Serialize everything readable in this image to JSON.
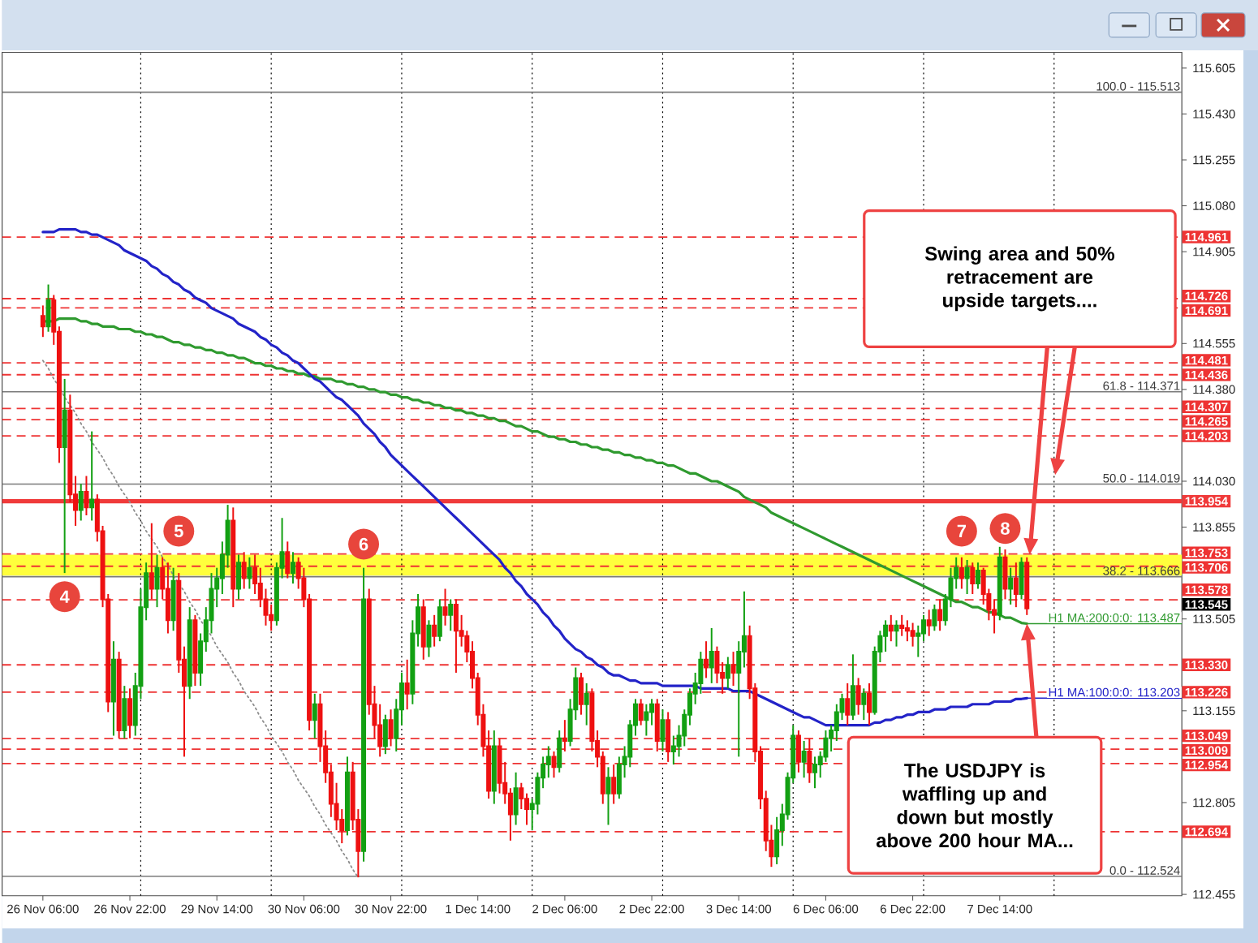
{
  "chart_data": {
    "type": "candlestick",
    "categories": [
      "26 Nov 06:00",
      null,
      null,
      null,
      null,
      null,
      null,
      null,
      null,
      null,
      null,
      null,
      null,
      null,
      null,
      null,
      "26 Nov 22:00",
      null,
      null,
      null,
      null,
      null,
      null,
      null,
      null,
      null,
      null,
      null,
      null,
      null,
      null,
      null,
      "29 Nov 14:00",
      null,
      null,
      null,
      null,
      null,
      null,
      null,
      null,
      null,
      null,
      null,
      null,
      null,
      null,
      null,
      "30 Nov 06:00",
      null,
      null,
      null,
      null,
      null,
      null,
      null,
      null,
      null,
      null,
      null,
      null,
      null,
      null,
      null,
      "30 Nov 22:00",
      null,
      null,
      null,
      null,
      null,
      null,
      null,
      null,
      null,
      null,
      null,
      null,
      null,
      null,
      null,
      "1 Dec 14:00",
      null,
      null,
      null,
      null,
      null,
      null,
      null,
      null,
      null,
      null,
      null,
      null,
      null,
      null,
      null,
      "2 Dec 06:00",
      null,
      null,
      null,
      null,
      null,
      null,
      null,
      null,
      null,
      null,
      null,
      null,
      null,
      null,
      null,
      "2 Dec 22:00",
      null,
      null,
      null,
      null,
      null,
      null,
      null,
      null,
      null,
      null,
      null,
      null,
      null,
      null,
      null,
      "3 Dec 14:00",
      null,
      null,
      null,
      null,
      null,
      null,
      null,
      null,
      null,
      null,
      null,
      null,
      null,
      null,
      null,
      "6 Dec 06:00",
      null,
      null,
      null,
      null,
      null,
      null,
      null,
      null,
      null,
      null,
      null,
      null,
      null,
      null,
      null,
      "6 Dec 22:00",
      null,
      null,
      null,
      null,
      null,
      null,
      null,
      null,
      null,
      null,
      null,
      null,
      null,
      null,
      null,
      "7 Dec 14:00",
      null,
      null,
      null,
      null,
      null
    ],
    "ohlc": [
      [
        114.66,
        114.7,
        114.58,
        114.62
      ],
      [
        114.62,
        114.78,
        114.6,
        114.72
      ],
      [
        114.72,
        114.74,
        114.55,
        114.6
      ],
      [
        114.6,
        114.62,
        114.1,
        114.16
      ],
      [
        114.16,
        114.42,
        113.68,
        114.3
      ],
      [
        114.3,
        114.36,
        113.95,
        113.98
      ],
      [
        113.98,
        114.05,
        113.86,
        113.92
      ],
      [
        113.92,
        114.02,
        113.88,
        113.99
      ],
      [
        113.99,
        114.05,
        113.9,
        113.93
      ],
      [
        113.93,
        114.22,
        113.88,
        113.96
      ],
      [
        113.96,
        113.98,
        113.8,
        113.84
      ],
      [
        113.84,
        113.86,
        113.55,
        113.58
      ],
      [
        113.58,
        113.6,
        113.15,
        113.19
      ],
      [
        113.19,
        113.42,
        113.06,
        113.35
      ],
      [
        113.35,
        113.38,
        113.05,
        113.08
      ],
      [
        113.08,
        113.25,
        113.05,
        113.2
      ],
      [
        113.2,
        113.24,
        113.05,
        113.1
      ],
      [
        113.1,
        113.3,
        113.06,
        113.25
      ],
      [
        113.25,
        113.62,
        113.2,
        113.55
      ],
      [
        113.55,
        113.72,
        113.5,
        113.68
      ],
      [
        113.68,
        113.87,
        113.58,
        113.62
      ],
      [
        113.62,
        113.75,
        113.55,
        113.7
      ],
      [
        113.7,
        113.74,
        113.58,
        113.62
      ],
      [
        113.62,
        113.72,
        113.45,
        113.5
      ],
      [
        113.5,
        113.7,
        113.46,
        113.65
      ],
      [
        113.65,
        113.68,
        113.3,
        113.35
      ],
      [
        113.35,
        113.4,
        112.98,
        113.25
      ],
      [
        113.25,
        113.55,
        113.2,
        113.5
      ],
      [
        113.5,
        113.52,
        113.25,
        113.3
      ],
      [
        113.3,
        113.45,
        113.25,
        113.42
      ],
      [
        113.42,
        113.55,
        113.38,
        113.5
      ],
      [
        113.5,
        113.68,
        113.45,
        113.62
      ],
      [
        113.62,
        113.7,
        113.55,
        113.66
      ],
      [
        113.66,
        113.8,
        113.6,
        113.75
      ],
      [
        113.75,
        113.94,
        113.7,
        113.88
      ],
      [
        113.88,
        113.93,
        113.55,
        113.62
      ],
      [
        113.62,
        113.75,
        113.58,
        113.72
      ],
      [
        113.72,
        113.76,
        113.62,
        113.66
      ],
      [
        113.66,
        113.74,
        113.62,
        113.7
      ],
      [
        113.7,
        113.75,
        113.6,
        113.64
      ],
      [
        113.64,
        113.7,
        113.55,
        113.58
      ],
      [
        113.58,
        113.62,
        113.48,
        113.52
      ],
      [
        113.52,
        113.56,
        113.46,
        113.5
      ],
      [
        113.5,
        113.72,
        113.48,
        113.7
      ],
      [
        113.7,
        113.89,
        113.66,
        113.76
      ],
      [
        113.76,
        113.8,
        113.66,
        113.68
      ],
      [
        113.68,
        113.76,
        113.64,
        113.72
      ],
      [
        113.72,
        113.74,
        113.62,
        113.66
      ],
      [
        113.66,
        113.7,
        113.55,
        113.58
      ],
      [
        113.58,
        113.6,
        113.08,
        113.12
      ],
      [
        113.12,
        113.22,
        113.05,
        113.18
      ],
      [
        113.18,
        113.22,
        112.96,
        113.02
      ],
      [
        113.02,
        113.08,
        112.88,
        112.92
      ],
      [
        112.92,
        112.95,
        112.75,
        112.8
      ],
      [
        112.8,
        112.88,
        112.7,
        112.74
      ],
      [
        112.74,
        112.78,
        112.65,
        112.7
      ],
      [
        112.7,
        112.98,
        112.68,
        112.92
      ],
      [
        112.92,
        112.96,
        112.7,
        112.74
      ],
      [
        112.74,
        112.78,
        112.52,
        112.62
      ],
      [
        112.62,
        113.7,
        112.58,
        113.58
      ],
      [
        113.58,
        113.62,
        113.14,
        113.18
      ],
      [
        113.18,
        113.25,
        113.05,
        113.1
      ],
      [
        113.1,
        113.18,
        112.98,
        113.02
      ],
      [
        113.02,
        113.14,
        112.99,
        113.12
      ],
      [
        113.12,
        113.16,
        113.02,
        113.05
      ],
      [
        113.05,
        113.2,
        113.0,
        113.16
      ],
      [
        113.16,
        113.3,
        113.1,
        113.26
      ],
      [
        113.26,
        113.35,
        113.16,
        113.22
      ],
      [
        113.22,
        113.5,
        113.18,
        113.45
      ],
      [
        113.45,
        113.6,
        113.4,
        113.55
      ],
      [
        113.55,
        113.58,
        113.35,
        113.4
      ],
      [
        113.4,
        113.5,
        113.36,
        113.48
      ],
      [
        113.48,
        113.52,
        113.4,
        113.44
      ],
      [
        113.44,
        113.58,
        113.42,
        113.55
      ],
      [
        113.55,
        113.62,
        113.48,
        113.52
      ],
      [
        113.52,
        113.58,
        113.46,
        113.56
      ],
      [
        113.56,
        113.58,
        113.3,
        113.46
      ],
      [
        113.46,
        113.52,
        113.4,
        113.44
      ],
      [
        113.44,
        113.46,
        113.34,
        113.38
      ],
      [
        113.38,
        113.42,
        113.24,
        113.28
      ],
      [
        113.28,
        113.3,
        113.1,
        113.14
      ],
      [
        113.14,
        113.18,
        112.98,
        113.02
      ],
      [
        113.02,
        113.08,
        112.82,
        112.85
      ],
      [
        112.85,
        113.08,
        112.8,
        113.02
      ],
      [
        113.02,
        113.05,
        112.84,
        112.88
      ],
      [
        112.88,
        112.96,
        112.8,
        112.84
      ],
      [
        112.84,
        112.86,
        112.66,
        112.76
      ],
      [
        112.76,
        112.92,
        112.72,
        112.86
      ],
      [
        112.86,
        112.88,
        112.78,
        112.82
      ],
      [
        112.82,
        112.84,
        112.72,
        112.78
      ],
      [
        112.78,
        112.82,
        112.7,
        112.8
      ],
      [
        112.8,
        112.92,
        112.76,
        112.9
      ],
      [
        112.9,
        112.98,
        112.86,
        112.95
      ],
      [
        112.95,
        113.02,
        112.9,
        112.98
      ],
      [
        112.98,
        113.0,
        112.9,
        112.94
      ],
      [
        112.94,
        113.08,
        112.92,
        113.05
      ],
      [
        113.05,
        113.12,
        113.0,
        113.04
      ],
      [
        113.04,
        113.2,
        113.02,
        113.16
      ],
      [
        113.16,
        113.32,
        113.12,
        113.28
      ],
      [
        113.28,
        113.3,
        113.14,
        113.18
      ],
      [
        113.18,
        113.26,
        113.1,
        113.22
      ],
      [
        113.22,
        113.24,
        113.0,
        113.04
      ],
      [
        113.04,
        113.08,
        112.94,
        112.98
      ],
      [
        112.98,
        113.0,
        112.8,
        112.84
      ],
      [
        112.84,
        112.94,
        112.72,
        112.9
      ],
      [
        112.9,
        112.95,
        112.8,
        112.84
      ],
      [
        112.84,
        112.98,
        112.82,
        112.95
      ],
      [
        112.95,
        113.02,
        112.9,
        112.98
      ],
      [
        112.98,
        113.12,
        112.94,
        113.1
      ],
      [
        113.1,
        113.2,
        113.06,
        113.18
      ],
      [
        113.18,
        113.2,
        113.1,
        113.12
      ],
      [
        113.12,
        113.18,
        113.06,
        113.15
      ],
      [
        113.15,
        113.2,
        113.1,
        113.18
      ],
      [
        113.18,
        113.2,
        113.0,
        113.04
      ],
      [
        113.04,
        113.16,
        113.0,
        113.12
      ],
      [
        113.12,
        113.15,
        112.96,
        113.0
      ],
      [
        113.0,
        113.06,
        112.95,
        113.02
      ],
      [
        113.02,
        113.1,
        112.98,
        113.06
      ],
      [
        113.06,
        113.16,
        113.02,
        113.14
      ],
      [
        113.14,
        113.24,
        113.1,
        113.22
      ],
      [
        113.22,
        113.3,
        113.18,
        113.26
      ],
      [
        113.26,
        113.38,
        113.22,
        113.35
      ],
      [
        113.35,
        113.42,
        113.28,
        113.32
      ],
      [
        113.32,
        113.47,
        113.26,
        113.38
      ],
      [
        113.38,
        113.4,
        113.26,
        113.3
      ],
      [
        113.3,
        113.34,
        113.22,
        113.28
      ],
      [
        113.28,
        113.36,
        113.24,
        113.33
      ],
      [
        113.33,
        113.38,
        113.25,
        113.3
      ],
      [
        113.3,
        113.42,
        112.98,
        113.38
      ],
      [
        113.38,
        113.61,
        113.32,
        113.44
      ],
      [
        113.44,
        113.48,
        113.2,
        113.24
      ],
      [
        113.24,
        113.26,
        112.96,
        113.0
      ],
      [
        113.0,
        113.02,
        112.78,
        112.82
      ],
      [
        112.82,
        112.85,
        112.62,
        112.66
      ],
      [
        112.66,
        112.72,
        112.56,
        112.6
      ],
      [
        112.6,
        112.75,
        112.57,
        112.7
      ],
      [
        112.7,
        112.8,
        112.64,
        112.76
      ],
      [
        112.76,
        112.92,
        112.74,
        112.9
      ],
      [
        112.9,
        113.1,
        112.88,
        113.06
      ],
      [
        113.06,
        113.08,
        112.92,
        112.96
      ],
      [
        112.96,
        113.04,
        112.9,
        113.0
      ],
      [
        113.0,
        113.05,
        112.88,
        112.92
      ],
      [
        112.92,
        112.98,
        112.86,
        112.95
      ],
      [
        112.95,
        113.0,
        112.9,
        112.98
      ],
      [
        112.98,
        113.08,
        112.96,
        113.05
      ],
      [
        113.05,
        113.1,
        113.0,
        113.08
      ],
      [
        113.08,
        113.18,
        113.04,
        113.15
      ],
      [
        113.15,
        113.22,
        113.12,
        113.2
      ],
      [
        113.2,
        113.26,
        113.1,
        113.14
      ],
      [
        113.14,
        113.37,
        113.12,
        113.25
      ],
      [
        113.25,
        113.28,
        113.14,
        113.18
      ],
      [
        113.18,
        113.24,
        113.12,
        113.22
      ],
      [
        113.22,
        113.26,
        113.1,
        113.15
      ],
      [
        113.15,
        113.4,
        113.14,
        113.38
      ],
      [
        113.38,
        113.46,
        113.34,
        113.44
      ],
      [
        113.44,
        113.5,
        113.38,
        113.48
      ],
      [
        113.48,
        113.52,
        113.42,
        113.46
      ],
      [
        113.46,
        113.5,
        113.4,
        113.48
      ],
      [
        113.48,
        113.52,
        113.44,
        113.47
      ],
      [
        113.47,
        113.5,
        113.42,
        113.46
      ],
      [
        113.46,
        113.49,
        113.4,
        113.44
      ],
      [
        113.44,
        113.48,
        113.36,
        113.45
      ],
      [
        113.45,
        113.52,
        113.42,
        113.5
      ],
      [
        113.5,
        113.54,
        113.44,
        113.48
      ],
      [
        113.48,
        113.56,
        113.46,
        113.54
      ],
      [
        113.54,
        113.58,
        113.46,
        113.5
      ],
      [
        113.5,
        113.6,
        113.48,
        113.58
      ],
      [
        113.58,
        113.7,
        113.55,
        113.66
      ],
      [
        113.66,
        113.74,
        113.62,
        113.7
      ],
      [
        113.7,
        113.74,
        113.62,
        113.66
      ],
      [
        113.66,
        113.73,
        113.6,
        113.7
      ],
      [
        113.7,
        113.72,
        113.6,
        113.64
      ],
      [
        113.64,
        113.72,
        113.62,
        113.69
      ],
      [
        113.69,
        113.7,
        113.56,
        113.6
      ],
      [
        113.6,
        113.62,
        113.5,
        113.54
      ],
      [
        113.54,
        113.58,
        113.45,
        113.52
      ],
      [
        113.52,
        113.78,
        113.5,
        113.74
      ],
      [
        113.74,
        113.77,
        113.58,
        113.62
      ],
      [
        113.62,
        113.7,
        113.56,
        113.66
      ],
      [
        113.66,
        113.72,
        113.55,
        113.6
      ],
      [
        113.6,
        113.74,
        113.58,
        113.72
      ],
      [
        113.72,
        113.74,
        113.52,
        113.545
      ]
    ],
    "colors": [
      "#ee1111",
      "#13a013",
      "#ee1111",
      "#ee1111",
      "#13a013",
      "#ee1111",
      "#ee1111",
      "#13a013",
      "#ee1111",
      "#13a013",
      "#ee1111",
      "#ee1111",
      "#ee1111",
      "#13a013",
      "#ee1111",
      "#13a013",
      "#ee1111",
      "#13a013",
      "#13a013",
      "#13a013",
      "#ee1111",
      "#13a013",
      "#ee1111",
      "#ee1111",
      "#13a013",
      "#ee1111",
      "#ee1111",
      "#13a013",
      "#ee1111",
      "#13a013",
      "#13a013",
      "#13a013",
      "#13a013",
      "#13a013",
      "#13a013",
      "#ee1111",
      "#13a013",
      "#ee1111",
      "#13a013",
      "#ee1111",
      "#ee1111",
      "#ee1111",
      "#ee1111",
      "#13a013",
      "#13a013",
      "#ee1111",
      "#13a013",
      "#ee1111",
      "#ee1111",
      "#ee1111",
      "#13a013",
      "#ee1111",
      "#ee1111",
      "#ee1111",
      "#ee1111",
      "#ee1111",
      "#13a013",
      "#ee1111",
      "#ee1111",
      "#13a013",
      "#ee1111",
      "#ee1111",
      "#ee1111",
      "#13a013",
      "#ee1111",
      "#13a013",
      "#13a013",
      "#ee1111",
      "#13a013",
      "#13a013",
      "#ee1111",
      "#13a013",
      "#ee1111",
      "#13a013",
      "#ee1111",
      "#13a013",
      "#ee1111",
      "#ee1111",
      "#ee1111",
      "#ee1111",
      "#ee1111",
      "#ee1111",
      "#ee1111",
      "#13a013",
      "#ee1111",
      "#ee1111",
      "#ee1111",
      "#13a013",
      "#ee1111",
      "#ee1111",
      "#13a013",
      "#13a013",
      "#13a013",
      "#13a013",
      "#ee1111",
      "#13a013",
      "#ee1111",
      "#13a013",
      "#13a013",
      "#ee1111",
      "#13a013",
      "#ee1111",
      "#ee1111",
      "#ee1111",
      "#13a013",
      "#ee1111",
      "#13a013",
      "#13a013",
      "#13a013",
      "#13a013",
      "#ee1111",
      "#13a013",
      "#13a013",
      "#ee1111",
      "#13a013",
      "#ee1111",
      "#13a013",
      "#13a013",
      "#13a013",
      "#13a013",
      "#13a013",
      "#13a013",
      "#ee1111",
      "#13a013",
      "#ee1111",
      "#ee1111",
      "#13a013",
      "#ee1111",
      "#13a013",
      "#13a013",
      "#ee1111",
      "#ee1111",
      "#ee1111",
      "#ee1111",
      "#ee1111",
      "#13a013",
      "#13a013",
      "#13a013",
      "#13a013",
      "#ee1111",
      "#13a013",
      "#ee1111",
      "#13a013",
      "#13a013",
      "#13a013",
      "#13a013",
      "#13a013",
      "#13a013",
      "#ee1111",
      "#13a013",
      "#ee1111",
      "#13a013",
      "#ee1111",
      "#13a013",
      "#13a013",
      "#13a013",
      "#ee1111",
      "#13a013",
      "#ee1111",
      "#ee1111",
      "#ee1111",
      "#13a013",
      "#13a013",
      "#ee1111",
      "#13a013",
      "#ee1111",
      "#13a013",
      "#13a013",
      "#13a013",
      "#ee1111",
      "#13a013",
      "#ee1111",
      "#13a013",
      "#ee1111",
      "#ee1111",
      "#ee1111",
      "#13a013",
      "#ee1111",
      "#13a013",
      "#ee1111",
      "#13a013",
      "#ee1111"
    ],
    "series": [
      {
        "type": "line",
        "name": "H1 MA:200:0:0: 113.487",
        "color": "#2f9a2f",
        "values": [
          114.64,
          114.64,
          114.64,
          114.65,
          114.65,
          114.65,
          114.65,
          114.64,
          114.64,
          114.63,
          114.63,
          114.62,
          114.62,
          114.62,
          114.61,
          114.61,
          114.61,
          114.6,
          114.6,
          114.59,
          114.59,
          114.58,
          114.58,
          114.57,
          114.56,
          114.56,
          114.55,
          114.55,
          114.54,
          114.54,
          114.53,
          114.53,
          114.52,
          114.52,
          114.51,
          114.51,
          114.5,
          114.5,
          114.49,
          114.48,
          114.48,
          114.47,
          114.47,
          114.46,
          114.46,
          114.45,
          114.45,
          114.44,
          114.44,
          114.43,
          114.43,
          114.42,
          114.42,
          114.42,
          114.41,
          114.41,
          114.4,
          114.4,
          114.39,
          114.39,
          114.38,
          114.38,
          114.37,
          114.37,
          114.36,
          114.36,
          114.35,
          114.35,
          114.34,
          114.34,
          114.33,
          114.33,
          114.32,
          114.32,
          114.31,
          114.31,
          114.3,
          114.3,
          114.29,
          114.29,
          114.28,
          114.28,
          114.27,
          114.27,
          114.26,
          114.26,
          114.25,
          114.24,
          114.24,
          114.23,
          114.22,
          114.22,
          114.21,
          114.2,
          114.2,
          114.19,
          114.19,
          114.18,
          114.18,
          114.17,
          114.17,
          114.16,
          114.16,
          114.15,
          114.15,
          114.14,
          114.14,
          114.13,
          114.13,
          114.12,
          114.12,
          114.11,
          114.11,
          114.1,
          114.1,
          114.09,
          114.09,
          114.08,
          114.07,
          114.06,
          114.06,
          114.05,
          114.04,
          114.03,
          114.03,
          114.02,
          114.01,
          114.0,
          113.99,
          113.97,
          113.96,
          113.95,
          113.94,
          113.93,
          113.91,
          113.9,
          113.89,
          113.88,
          113.87,
          113.86,
          113.85,
          113.84,
          113.83,
          113.82,
          113.81,
          113.8,
          113.79,
          113.78,
          113.77,
          113.76,
          113.75,
          113.74,
          113.73,
          113.72,
          113.71,
          113.7,
          113.69,
          113.68,
          113.67,
          113.66,
          113.65,
          113.64,
          113.63,
          113.62,
          113.61,
          113.6,
          113.59,
          113.58,
          113.57,
          113.57,
          113.56,
          113.55,
          113.55,
          113.54,
          113.53,
          113.53,
          113.52,
          113.51,
          113.51,
          113.5,
          113.49,
          113.487
        ]
      },
      {
        "type": "line",
        "name": "H1 MA:100:0:0: 113.203",
        "color": "#2323c8",
        "values": [
          114.98,
          114.98,
          114.98,
          114.99,
          114.99,
          114.99,
          114.99,
          114.98,
          114.98,
          114.97,
          114.97,
          114.96,
          114.95,
          114.94,
          114.93,
          114.91,
          114.9,
          114.89,
          114.88,
          114.87,
          114.85,
          114.84,
          114.82,
          114.81,
          114.79,
          114.78,
          114.76,
          114.75,
          114.73,
          114.72,
          114.71,
          114.69,
          114.68,
          114.67,
          114.66,
          114.65,
          114.63,
          114.62,
          114.61,
          114.6,
          114.58,
          114.57,
          114.55,
          114.54,
          114.52,
          114.51,
          114.49,
          114.48,
          114.46,
          114.44,
          114.42,
          114.41,
          114.39,
          114.37,
          114.35,
          114.34,
          114.32,
          114.3,
          114.28,
          114.25,
          114.23,
          114.21,
          114.18,
          114.16,
          114.13,
          114.11,
          114.09,
          114.07,
          114.05,
          114.03,
          114.01,
          113.99,
          113.97,
          113.95,
          113.93,
          113.91,
          113.89,
          113.87,
          113.85,
          113.83,
          113.81,
          113.79,
          113.77,
          113.75,
          113.73,
          113.7,
          113.68,
          113.65,
          113.63,
          113.6,
          113.58,
          113.56,
          113.53,
          113.51,
          113.48,
          113.46,
          113.43,
          113.41,
          113.39,
          113.38,
          113.36,
          113.35,
          113.33,
          113.32,
          113.3,
          113.29,
          113.29,
          113.28,
          113.27,
          113.27,
          113.26,
          113.26,
          113.26,
          113.26,
          113.25,
          113.25,
          113.25,
          113.25,
          113.25,
          113.25,
          113.25,
          113.24,
          113.24,
          113.24,
          113.24,
          113.24,
          113.24,
          113.23,
          113.23,
          113.23,
          113.23,
          113.22,
          113.21,
          113.2,
          113.19,
          113.18,
          113.17,
          113.16,
          113.15,
          113.14,
          113.13,
          113.13,
          113.12,
          113.11,
          113.1,
          113.1,
          113.1,
          113.1,
          113.1,
          113.1,
          113.1,
          113.1,
          113.1,
          113.11,
          113.11,
          113.12,
          113.12,
          113.13,
          113.13,
          113.14,
          113.14,
          113.15,
          113.15,
          113.15,
          113.16,
          113.16,
          113.16,
          113.17,
          113.17,
          113.17,
          113.17,
          113.18,
          113.18,
          113.18,
          113.18,
          113.19,
          113.19,
          113.19,
          113.19,
          113.2,
          113.2,
          113.203
        ]
      },
      {
        "type": "line",
        "color": "#8c8c8c",
        "line_style": "dotted",
        "values": [
          114.49,
          114.46,
          114.42,
          114.39,
          114.35,
          114.32,
          114.29,
          114.25,
          114.22,
          114.18,
          114.15,
          114.12,
          114.08,
          114.05,
          114.01,
          113.98,
          113.95,
          113.91,
          113.88,
          113.84,
          113.81,
          113.78,
          113.74,
          113.71,
          113.67,
          113.64,
          113.61,
          113.57,
          113.54,
          113.5,
          113.47,
          113.44,
          113.4,
          113.37,
          113.34,
          113.3,
          113.27,
          113.23,
          113.2,
          113.17,
          113.13,
          113.1,
          113.06,
          113.03,
          113.0,
          112.96,
          112.93,
          112.89,
          112.86,
          112.83,
          112.79,
          112.76,
          112.72,
          112.69,
          112.66,
          112.62,
          112.59,
          112.55,
          112.52,
          null,
          null,
          null,
          null,
          null,
          null,
          null,
          null,
          null,
          null,
          null,
          null,
          null,
          null,
          null,
          null,
          null,
          null,
          null,
          null,
          null,
          null,
          null,
          null,
          null,
          null,
          null,
          null,
          null,
          null,
          null,
          null,
          null,
          null,
          null,
          null,
          null,
          null,
          null,
          null,
          null,
          null,
          null,
          null,
          null,
          null,
          null,
          null,
          null,
          null,
          null,
          null,
          null,
          null,
          null,
          null,
          null,
          null,
          null,
          null,
          null,
          null,
          null,
          null,
          null,
          null,
          null,
          null,
          null,
          null,
          null,
          null,
          null,
          null,
          null,
          null,
          null,
          null,
          null,
          null,
          null,
          null,
          null,
          null,
          null,
          null,
          null,
          null,
          null,
          null,
          null,
          null,
          null,
          null,
          null,
          null,
          null,
          null,
          null,
          null,
          null,
          null,
          null,
          null,
          null,
          null,
          null,
          null,
          null,
          null,
          null,
          null,
          null,
          null,
          null,
          null,
          null,
          null,
          null,
          null,
          null,
          null,
          null
        ]
      }
    ],
    "ylim": [
      112.45,
      115.665
    ],
    "yticks": [
      115.605,
      {
        "value": 115.43,
        "label": "115.430"
      },
      115.255,
      {
        "value": 115.08,
        "label": "115.080"
      },
      114.905,
      114.555,
      {
        "value": 114.38,
        "label": "114.380"
      },
      {
        "value": 114.03,
        "label": "114.030"
      },
      113.855,
      113.505,
      113.155,
      112.805,
      112.455
    ],
    "ref_lines": [
      {
        "axis": "y",
        "value": 115.513,
        "color": "#7a7a7a"
      },
      {
        "axis": "y",
        "value": 114.371,
        "color": "#7a7a7a"
      },
      {
        "axis": "y",
        "value": 114.019,
        "color": "#7a7a7a"
      },
      {
        "axis": "y",
        "value": 113.666,
        "color": "#7a7a7a"
      },
      {
        "axis": "y",
        "value": 112.524,
        "color": "#7a7a7a"
      },
      {
        "axis": "y",
        "value": 113.954,
        "label": "113.954",
        "color": "#f03a3a",
        "line_style": "solid"
      },
      {
        "axis": "y",
        "value": 114.961,
        "label": "114.961",
        "color": "#ee3333",
        "line_style": "dashed"
      },
      {
        "axis": "y",
        "value": 114.726,
        "label": "114.726",
        "color": "#ee3333",
        "line_style": "dashed"
      },
      {
        "axis": "y",
        "value": 114.691,
        "label": "114.691",
        "color": "#ee3333",
        "line_style": "dashed"
      },
      {
        "axis": "y",
        "value": 114.481,
        "label": "114.481",
        "color": "#ee3333",
        "line_style": "dashed"
      },
      {
        "axis": "y",
        "value": 114.436,
        "label": "114.436",
        "color": "#ee3333",
        "line_style": "dashed"
      },
      {
        "axis": "y",
        "value": 114.307,
        "label": "114.307",
        "color": "#ee3333",
        "line_style": "dashed"
      },
      {
        "axis": "y",
        "value": 114.265,
        "label": "114.265",
        "color": "#ee3333",
        "line_style": "dashed"
      },
      {
        "axis": "y",
        "value": 114.203,
        "label": "114.203",
        "color": "#ee3333",
        "line_style": "dashed"
      },
      {
        "axis": "y",
        "value": 113.753,
        "label": "113.753",
        "color": "#ee3333",
        "line_style": "dashed"
      },
      {
        "axis": "y",
        "value": 113.706,
        "label": "113.706",
        "color": "#ee3333",
        "line_style": "dashed"
      },
      {
        "axis": "y",
        "value": 113.578,
        "label": "113.578",
        "color": "#ee3333",
        "line_style": "dashed"
      },
      {
        "axis": "y",
        "value": 113.33,
        "label": "113.330",
        "color": "#ee3333",
        "line_style": "dashed"
      },
      {
        "axis": "y",
        "value": 113.226,
        "label": "113.226",
        "color": "#ee3333",
        "line_style": "dashed"
      },
      {
        "axis": "y",
        "value": 113.049,
        "label": "113.049",
        "color": "#ee3333",
        "line_style": "dashed"
      },
      {
        "axis": "y",
        "value": 113.009,
        "label": "113.009",
        "color": "#ee3333",
        "line_style": "dashed"
      },
      {
        "axis": "y",
        "value": 112.954,
        "label": "112.954",
        "color": "#ee3333",
        "line_style": "dashed"
      },
      {
        "axis": "y",
        "value": 112.694,
        "label": "112.694",
        "color": "#ee3333",
        "line_style": "dashed"
      }
    ],
    "bands": [
      {
        "axis": "y",
        "from": 113.67,
        "to": 113.75,
        "color": "#ffff3c"
      }
    ],
    "annotations": [
      "Swing area and 50% retracement are upside targets....",
      "The USDJPY is waffling up and down but mostly above 200 hour MA...",
      {
        "text": "100.0 - 115.513",
        "y": 115.513
      },
      {
        "text": "61.8 - 114.371",
        "y": 114.371
      },
      {
        "text": "50.0 - 114.019",
        "y": 114.019
      },
      {
        "text": "38.2 - 113.666",
        "y": 113.666
      },
      {
        "text": "0.0 - 112.524",
        "y": 112.524
      },
      {
        "text": "4",
        "y": 113.59
      },
      {
        "text": "5",
        "y": 113.84
      },
      {
        "text": "6",
        "y": 113.79
      },
      {
        "text": "7",
        "y": 113.84
      },
      {
        "text": "8",
        "y": 113.85
      },
      "113.545"
    ]
  }
}
